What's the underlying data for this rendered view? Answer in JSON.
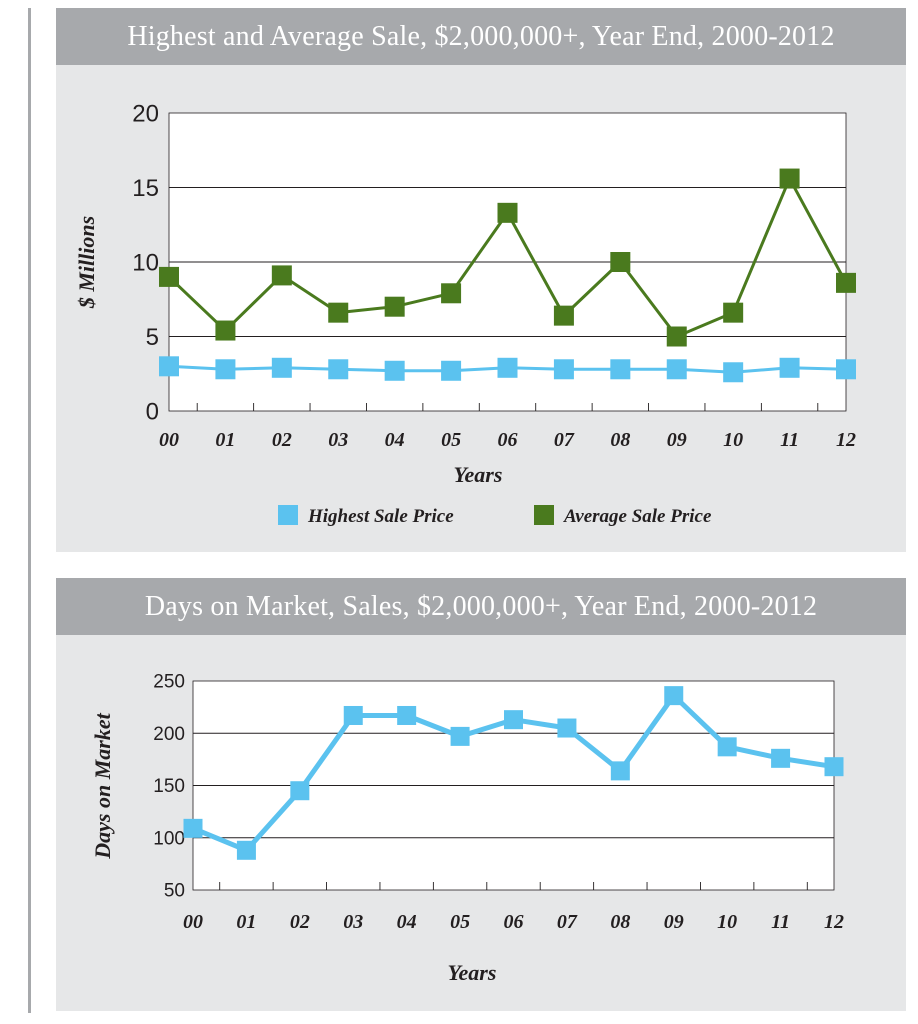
{
  "colors": {
    "highest": "#5bc2ef",
    "average": "#4a7a1e",
    "header_bg": "#a7a9ac",
    "panel_bg": "#e6e7e8",
    "grid": "#231f20"
  },
  "chart_data": [
    {
      "type": "line",
      "title": "Highest and Average Sale, $2,000,000+, Year End, 2000-2012",
      "xlabel": "Years",
      "ylabel": "$ Millions",
      "categories": [
        "00",
        "01",
        "02",
        "03",
        "04",
        "05",
        "06",
        "07",
        "08",
        "09",
        "10",
        "11",
        "12"
      ],
      "ylim": [
        0,
        20
      ],
      "yticks": [
        "0",
        "5",
        "10",
        "15",
        "20"
      ],
      "grid": true,
      "legend": "bottom",
      "series": [
        {
          "name": "Highest Sale Price",
          "color": "#5bc2ef",
          "marker": "square",
          "values": [
            3.0,
            2.8,
            2.9,
            2.8,
            2.7,
            2.7,
            2.9,
            2.8,
            2.8,
            2.8,
            2.6,
            2.9,
            2.8
          ]
        },
        {
          "name": "Average Sale Price",
          "color": "#4a7a1e",
          "marker": "square",
          "values": [
            9.0,
            5.4,
            9.1,
            6.6,
            7.0,
            7.9,
            13.3,
            6.4,
            10.0,
            5.0,
            6.6,
            15.6,
            8.6
          ]
        }
      ]
    },
    {
      "type": "line",
      "title": "Days on Market, Sales, $2,000,000+, Year End, 2000-2012",
      "xlabel": "Years",
      "ylabel": "Days on Market",
      "categories": [
        "00",
        "01",
        "02",
        "03",
        "04",
        "05",
        "06",
        "07",
        "08",
        "09",
        "10",
        "11",
        "12"
      ],
      "ylim": [
        50,
        250
      ],
      "yticks": [
        "50",
        "100",
        "150",
        "200",
        "250"
      ],
      "grid": true,
      "series": [
        {
          "color": "#5bc2ef",
          "marker": "square",
          "values": [
            109,
            88,
            145,
            217,
            217,
            197,
            213,
            205,
            164,
            236,
            187,
            176,
            168
          ]
        }
      ]
    }
  ]
}
